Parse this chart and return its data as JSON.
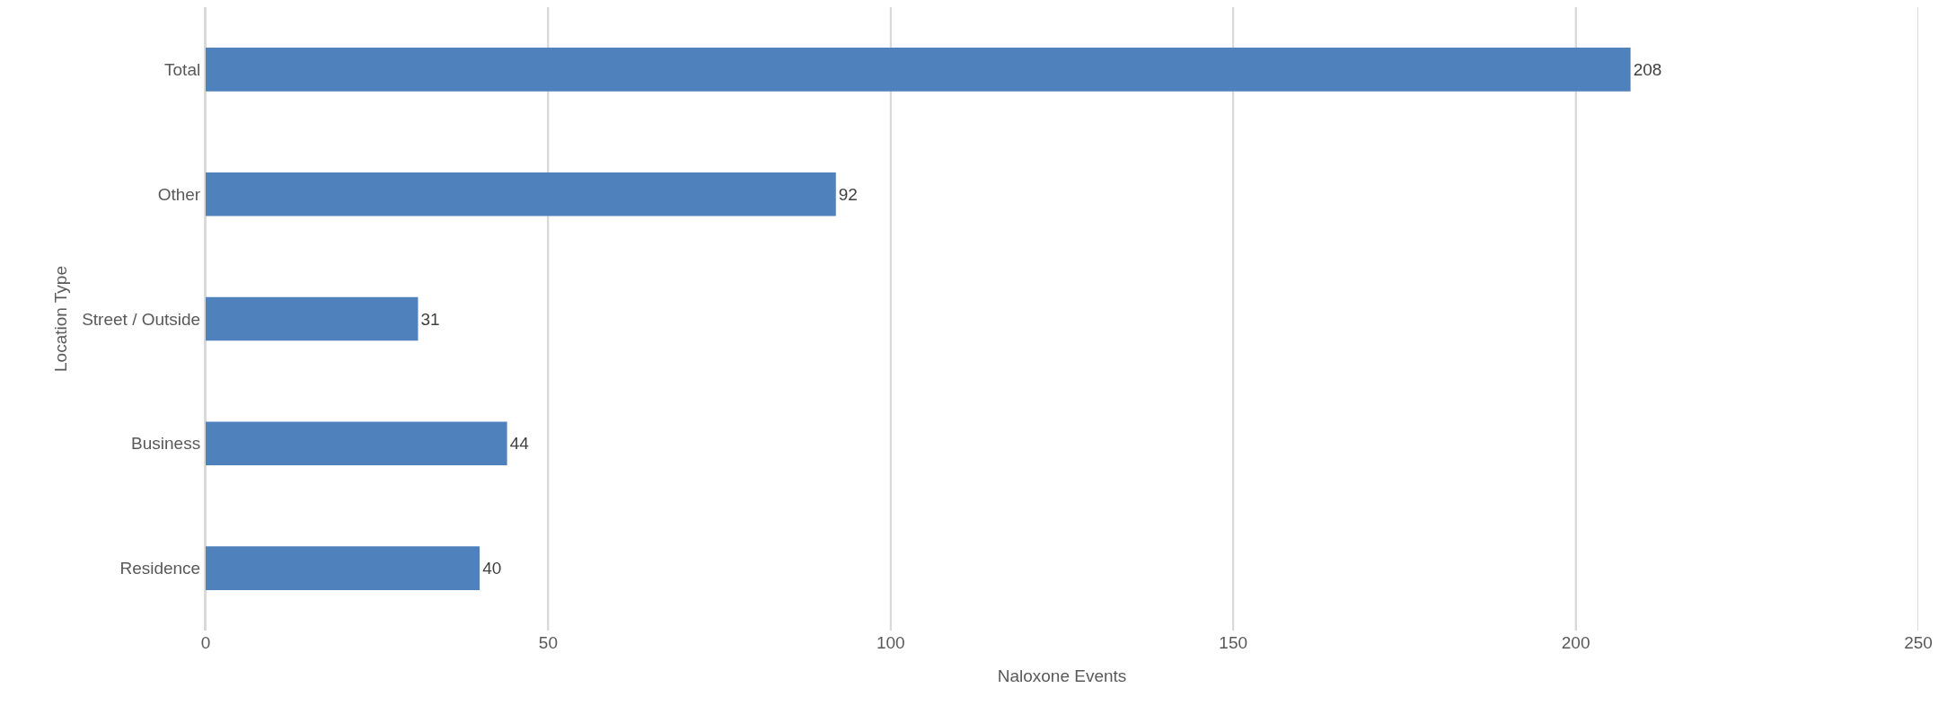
{
  "chart_data": {
    "type": "bar",
    "orientation": "horizontal",
    "xlabel": "Naloxone Events",
    "ylabel": "Location Type",
    "categories": [
      "Total",
      "Other",
      "Street / Outside",
      "Business",
      "Residence"
    ],
    "values": [
      208,
      92,
      31,
      44,
      40
    ],
    "color": "#4f81bd",
    "xlim": [
      0,
      250
    ],
    "xticks": [
      0,
      50,
      100,
      150,
      200,
      250
    ],
    "grid": "x",
    "data_labels": true
  }
}
